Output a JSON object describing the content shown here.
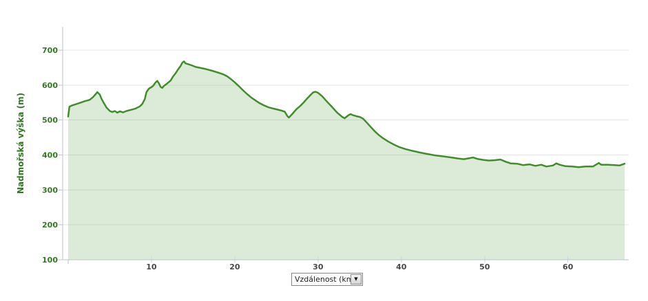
{
  "chart_data": {
    "type": "area",
    "title": "",
    "ylabel": "Nadmořská výška (m)",
    "xlabel": "Vzdálenost (km)",
    "xlim": [
      -0.66,
      67.3
    ],
    "ylim": [
      100,
      700
    ],
    "x_ticks": [
      10,
      20,
      30,
      40,
      50,
      60
    ],
    "y_ticks": [
      100,
      200,
      300,
      400,
      500,
      600,
      700
    ],
    "grid": true,
    "legend": "none",
    "series_name": "Nadmořská výška",
    "x": [
      0.0,
      0.15,
      0.5,
      1.0,
      1.5,
      2.0,
      2.6,
      3.0,
      3.3,
      3.5,
      3.8,
      4.0,
      4.3,
      4.6,
      5.0,
      5.3,
      5.6,
      5.9,
      6.2,
      6.6,
      7.0,
      7.5,
      8.1,
      8.6,
      8.9,
      9.2,
      9.4,
      9.7,
      10.0,
      10.2,
      10.5,
      10.7,
      10.9,
      11.1,
      11.3,
      11.5,
      11.8,
      12.0,
      12.3,
      12.6,
      12.9,
      13.2,
      13.5,
      13.7,
      13.9,
      14.1,
      14.4,
      14.8,
      15.3,
      15.9,
      16.5,
      17.3,
      18.1,
      18.7,
      19.1,
      19.5,
      20.0,
      20.5,
      21.0,
      21.5,
      22.0,
      22.5,
      23.0,
      23.5,
      24.0,
      24.6,
      25.1,
      25.6,
      26.0,
      26.3,
      26.5,
      26.9,
      27.4,
      27.9,
      28.3,
      28.7,
      29.1,
      29.4,
      29.7,
      30.0,
      30.5,
      31.1,
      31.7,
      32.3,
      32.9,
      33.2,
      33.6,
      33.9,
      34.2,
      34.6,
      35.0,
      35.4,
      35.8,
      36.3,
      36.8,
      37.3,
      37.8,
      38.4,
      39.0,
      39.7,
      40.5,
      41.3,
      42.2,
      43.1,
      44.0,
      45.0,
      46.0,
      46.8,
      47.5,
      48.2,
      48.6,
      49.1,
      49.8,
      50.5,
      51.2,
      51.9,
      52.5,
      53.1,
      53.9,
      54.6,
      55.4,
      56.1,
      56.8,
      57.4,
      58.2,
      58.6,
      59.0,
      59.7,
      60.5,
      61.3,
      62.1,
      63.0,
      63.7,
      64.0,
      64.8,
      65.6,
      66.2,
      66.8
    ],
    "y": [
      510,
      538,
      542,
      546,
      550,
      554,
      558,
      566,
      574,
      580,
      573,
      561,
      548,
      536,
      526,
      523,
      526,
      521,
      525,
      522,
      526,
      529,
      533,
      539,
      546,
      560,
      580,
      590,
      594,
      598,
      608,
      612,
      605,
      595,
      592,
      598,
      603,
      607,
      613,
      625,
      634,
      645,
      655,
      664,
      668,
      662,
      660,
      657,
      652,
      649,
      646,
      641,
      635,
      630,
      625,
      618,
      608,
      597,
      585,
      574,
      564,
      556,
      548,
      542,
      537,
      533,
      530,
      527,
      524,
      512,
      507,
      517,
      531,
      541,
      551,
      562,
      572,
      579,
      581,
      578,
      568,
      552,
      537,
      521,
      509,
      505,
      513,
      517,
      514,
      511,
      509,
      504,
      494,
      481,
      468,
      457,
      448,
      439,
      431,
      423,
      417,
      412,
      407,
      403,
      399,
      396,
      393,
      390,
      388,
      391,
      393,
      389,
      386,
      384,
      385,
      387,
      381,
      376,
      375,
      371,
      373,
      369,
      372,
      367,
      370,
      376,
      372,
      368,
      367,
      365,
      367,
      367,
      377,
      372,
      372,
      371,
      370,
      375
    ],
    "colors": {
      "line": "#3f8e29",
      "fill": "#3f8e29",
      "fill_opacity": "0.18",
      "grid": "#e6e6e6",
      "axis": "#b7c3ce",
      "minor_tick": "#ccd6df",
      "y_label_text": "#2f7a1f",
      "x_label_text": "#474747"
    }
  },
  "controls": {
    "x_axis_select": {
      "value": "Vzdálenost (km)",
      "dropdown_arrow": "▼"
    }
  }
}
